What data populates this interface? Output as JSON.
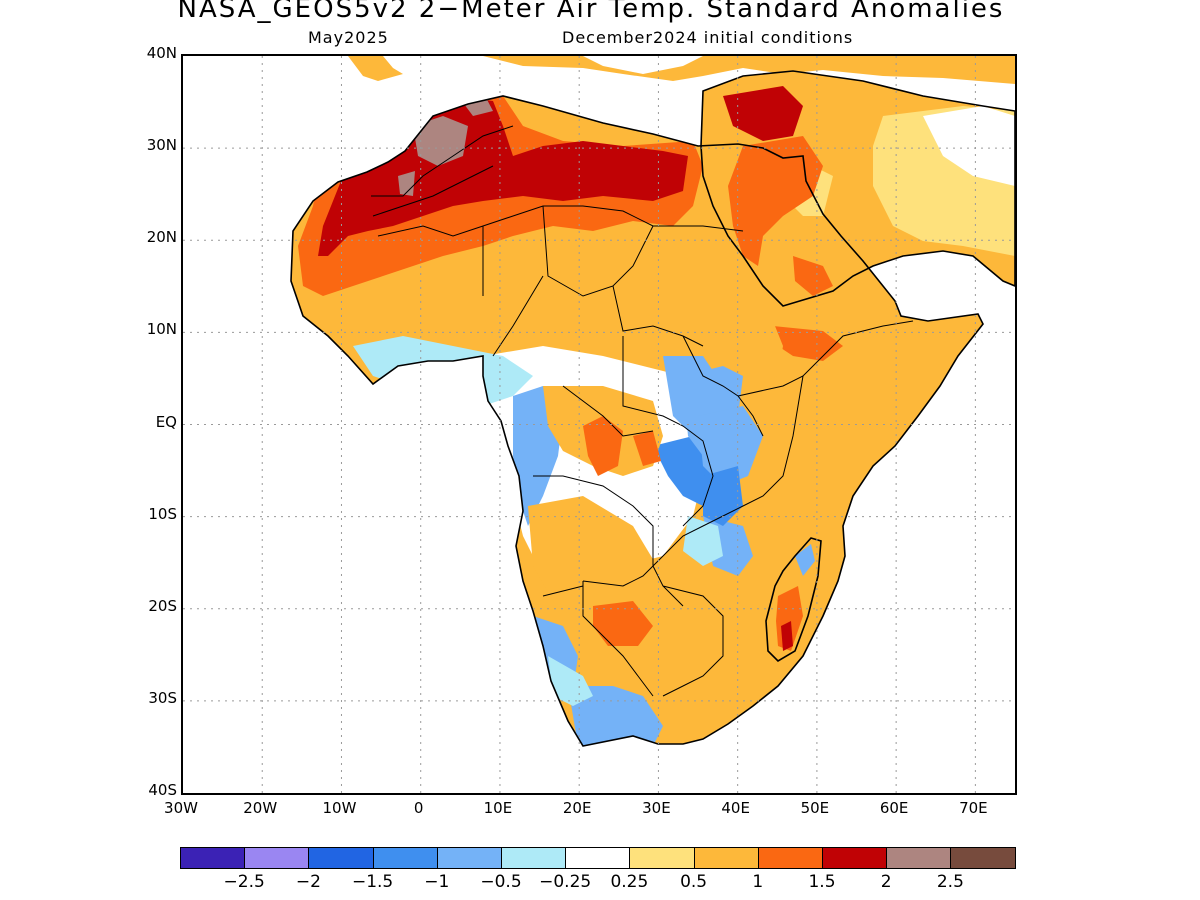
{
  "title": "NASA_GEOS5v2 2−Meter Air Temp. Standard Anomalies",
  "subtitle_left": "May2025",
  "subtitle_right": "December2024 initial conditions",
  "map": {
    "region": "Africa and Arabian Peninsula",
    "lon_range": [
      -30,
      75
    ],
    "lat_range": [
      -40,
      40
    ],
    "grid": true,
    "lat_ticks": [
      "40N",
      "30N",
      "20N",
      "10N",
      "EQ",
      "10S",
      "20S",
      "30S",
      "40S"
    ],
    "lon_ticks": [
      "30W",
      "20W",
      "10W",
      "0",
      "10E",
      "20E",
      "30E",
      "40E",
      "50E",
      "60E",
      "70E"
    ]
  },
  "colorbar": {
    "colors": [
      "#3b22b5",
      "#9a86f2",
      "#2165e3",
      "#3f8fef",
      "#74b2f7",
      "#aeeaf7",
      "#ffffff",
      "#fee17c",
      "#fdb83a",
      "#fa6812",
      "#c00205",
      "#ad8580",
      "#774b3d"
    ],
    "labels": [
      "−2.5",
      "−2",
      "−1.5",
      "−1",
      "−0.5",
      "−0.25",
      "0.25",
      "0.5",
      "1",
      "1.5",
      "2",
      "2.5"
    ]
  }
}
